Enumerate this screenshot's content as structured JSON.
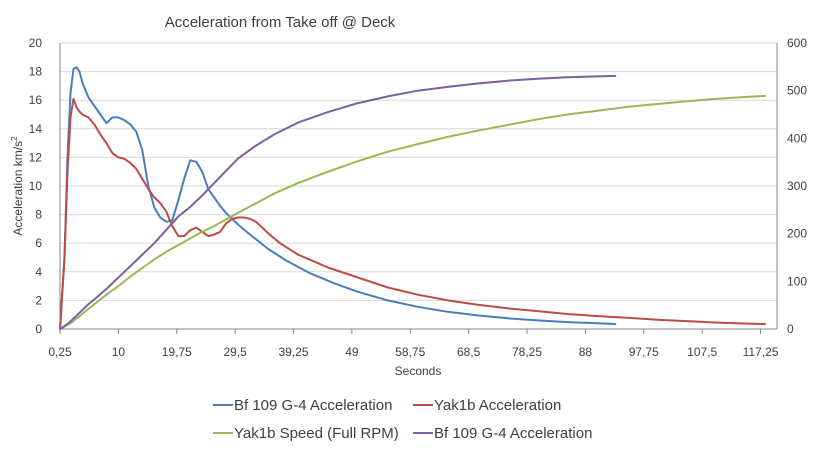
{
  "chart_data": {
    "type": "line",
    "title": "Acceleration from Take off @ Deck",
    "xlabel": "Seconds",
    "ylabel": "Acceleration km/s",
    "ylabel_superscript": "2",
    "x_tick_labels": [
      "0,25",
      "10",
      "19,75",
      "29,5",
      "39,25",
      "49",
      "58,75",
      "68,5",
      "78,25",
      "88",
      "97,75",
      "107,5",
      "117,25"
    ],
    "x_tick_values": [
      0.25,
      10,
      19.75,
      29.5,
      39.25,
      49,
      58.75,
      68.5,
      78.25,
      88,
      97.75,
      107.5,
      117.25
    ],
    "xlim": [
      0.25,
      120
    ],
    "ylim_left": [
      0,
      20
    ],
    "left_ticks": [
      "0",
      "2",
      "4",
      "6",
      "8",
      "10",
      "12",
      "14",
      "16",
      "18",
      "20"
    ],
    "ylim_right": [
      0,
      600
    ],
    "right_ticks": [
      "0",
      "100",
      "200",
      "300",
      "400",
      "500",
      "600"
    ],
    "gridlines": true,
    "legend_position": "bottom",
    "series": [
      {
        "name": "Bf 109 G-4 Acceleration",
        "axis": "left",
        "color": "#4a7ebb",
        "x": [
          0.25,
          1,
          1.5,
          2,
          2.5,
          3,
          3.5,
          4,
          5,
          6,
          7,
          8,
          9,
          10,
          11,
          12,
          13,
          14,
          15,
          16,
          17,
          18,
          19,
          20,
          21,
          22,
          23,
          24,
          25,
          26,
          27,
          28,
          30,
          32,
          35,
          38,
          42,
          46,
          50,
          55,
          60,
          65,
          70,
          75,
          80,
          85,
          90,
          93
        ],
        "y": [
          0,
          5,
          12,
          16.5,
          18.2,
          18.3,
          18,
          17.2,
          16.2,
          15.6,
          15,
          14.4,
          14.8,
          14.8,
          14.6,
          14.3,
          13.8,
          12.5,
          10,
          8.5,
          7.8,
          7.5,
          7.6,
          9,
          10.5,
          11.8,
          11.7,
          11,
          9.8,
          9.2,
          8.6,
          8.1,
          7.3,
          6.6,
          5.6,
          4.8,
          3.9,
          3.2,
          2.6,
          2.0,
          1.55,
          1.2,
          0.95,
          0.75,
          0.6,
          0.48,
          0.4,
          0.35
        ]
      },
      {
        "name": "Yak1b Acceleration",
        "axis": "left",
        "color": "#be4b48",
        "x": [
          0.25,
          1,
          1.5,
          2,
          2.5,
          3,
          3.5,
          4,
          5,
          6,
          7,
          8,
          9,
          10,
          11,
          12,
          13,
          14,
          15,
          16,
          17,
          18,
          19,
          20,
          21,
          22,
          23,
          24,
          25,
          26,
          27,
          28,
          29,
          30,
          31,
          32,
          33,
          34,
          35,
          37,
          40,
          45,
          50,
          55,
          60,
          65,
          70,
          75,
          80,
          85,
          90,
          95,
          100,
          105,
          110,
          115,
          118
        ],
        "y": [
          0,
          5,
          11,
          14.8,
          16.1,
          15.5,
          15.2,
          15,
          14.8,
          14.3,
          13.6,
          13,
          12.3,
          12,
          11.9,
          11.6,
          11.2,
          10.5,
          9.8,
          9.2,
          8.8,
          8.2,
          7.2,
          6.5,
          6.5,
          6.9,
          7.1,
          6.8,
          6.5,
          6.6,
          6.8,
          7.4,
          7.7,
          7.8,
          7.8,
          7.7,
          7.5,
          7.1,
          6.7,
          6.0,
          5.2,
          4.3,
          3.6,
          2.9,
          2.4,
          2.0,
          1.7,
          1.45,
          1.25,
          1.05,
          0.9,
          0.78,
          0.65,
          0.55,
          0.45,
          0.38,
          0.35
        ]
      },
      {
        "name": "Yak1b Speed (Full RPM)",
        "axis": "right",
        "color": "#98b954",
        "x": [
          0.25,
          1,
          2,
          3,
          4,
          5,
          6,
          8,
          10,
          12,
          14,
          16,
          18,
          20,
          22,
          24,
          26,
          28,
          30,
          33,
          36,
          40,
          45,
          50,
          55,
          60,
          65,
          70,
          75,
          80,
          85,
          90,
          95,
          100,
          105,
          110,
          115,
          118
        ],
        "y": [
          0,
          5,
          12,
          22,
          32,
          42,
          52,
          72,
          90,
          110,
          128,
          146,
          162,
          176,
          190,
          204,
          216,
          230,
          244,
          264,
          284,
          306,
          330,
          352,
          372,
          388,
          403,
          416,
          428,
          440,
          450,
          458,
          466,
          472,
          478,
          483,
          487,
          489
        ]
      },
      {
        "name": "Bf 109 G-4 Acceleration",
        "axis": "right",
        "color": "#7d60a0",
        "x": [
          0.25,
          1,
          2,
          3,
          4,
          5,
          6,
          8,
          10,
          12,
          14,
          16,
          18,
          20,
          22,
          24,
          26,
          28,
          30,
          33,
          36,
          40,
          45,
          50,
          55,
          60,
          65,
          70,
          75,
          80,
          85,
          90,
          93
        ],
        "y": [
          0,
          6,
          16,
          28,
          40,
          52,
          62,
          84,
          108,
          132,
          156,
          180,
          208,
          236,
          256,
          280,
          306,
          332,
          358,
          385,
          408,
          433,
          455,
          474,
          488,
          500,
          508,
          515,
          521,
          525,
          528,
          530,
          531
        ]
      }
    ]
  }
}
